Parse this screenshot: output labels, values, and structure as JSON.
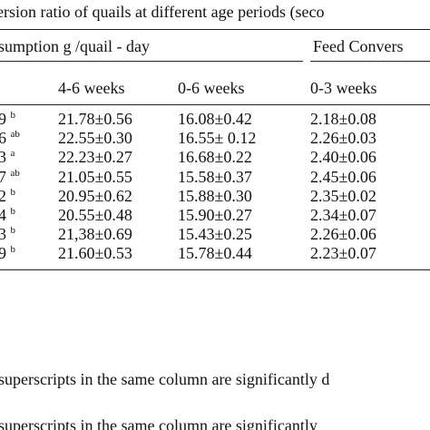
{
  "table": {
    "caption": "ersion ratio of quails at different age periods (seco",
    "group_headers": [
      "sumption g /quail - day",
      "Feed Convers"
    ],
    "column_headers": [
      "4-6 weeks",
      "0-6 weeks",
      "0-3 weeks"
    ],
    "rows": [
      {
        "label": "9",
        "sup": "b",
        "cells": [
          "21.78±0.56",
          "16.08±0.42",
          "2.18±0.08"
        ]
      },
      {
        "label": "6",
        "sup": "ab",
        "cells": [
          "22.55±0.30",
          "16.55± 0.12",
          "2.26±0.03"
        ]
      },
      {
        "label": "3",
        "sup": "a",
        "cells": [
          "22.23±0.27",
          "16.68±0.22",
          "2.40±0.06"
        ]
      },
      {
        "label": "7",
        "sup": "ab",
        "cells": [
          "21.05±0.55",
          "15.58±0.37",
          "2.45±0.06"
        ]
      },
      {
        "label": "2",
        "sup": "b",
        "cells": [
          "20.95±0.62",
          "15.88±0.30",
          "2.35±0.02"
        ]
      },
      {
        "label": "4",
        "sup": "b",
        "cells": [
          "20.55±0.48",
          "15.90±0.27",
          "2.34±0.07"
        ]
      },
      {
        "label": "3",
        "sup": "b",
        "cells": [
          "21,38±0.69",
          "15.43±0.25",
          "2.26±0.06"
        ]
      },
      {
        "label": "9",
        "sup": "b",
        "cells": [
          "21.60±0.53",
          "15.78±0.44",
          "2.23±0.07"
        ]
      }
    ],
    "footnote": "superscripts in the same column are significantly d",
    "footnote_repeat": "superscripts in the same column are significantly"
  }
}
